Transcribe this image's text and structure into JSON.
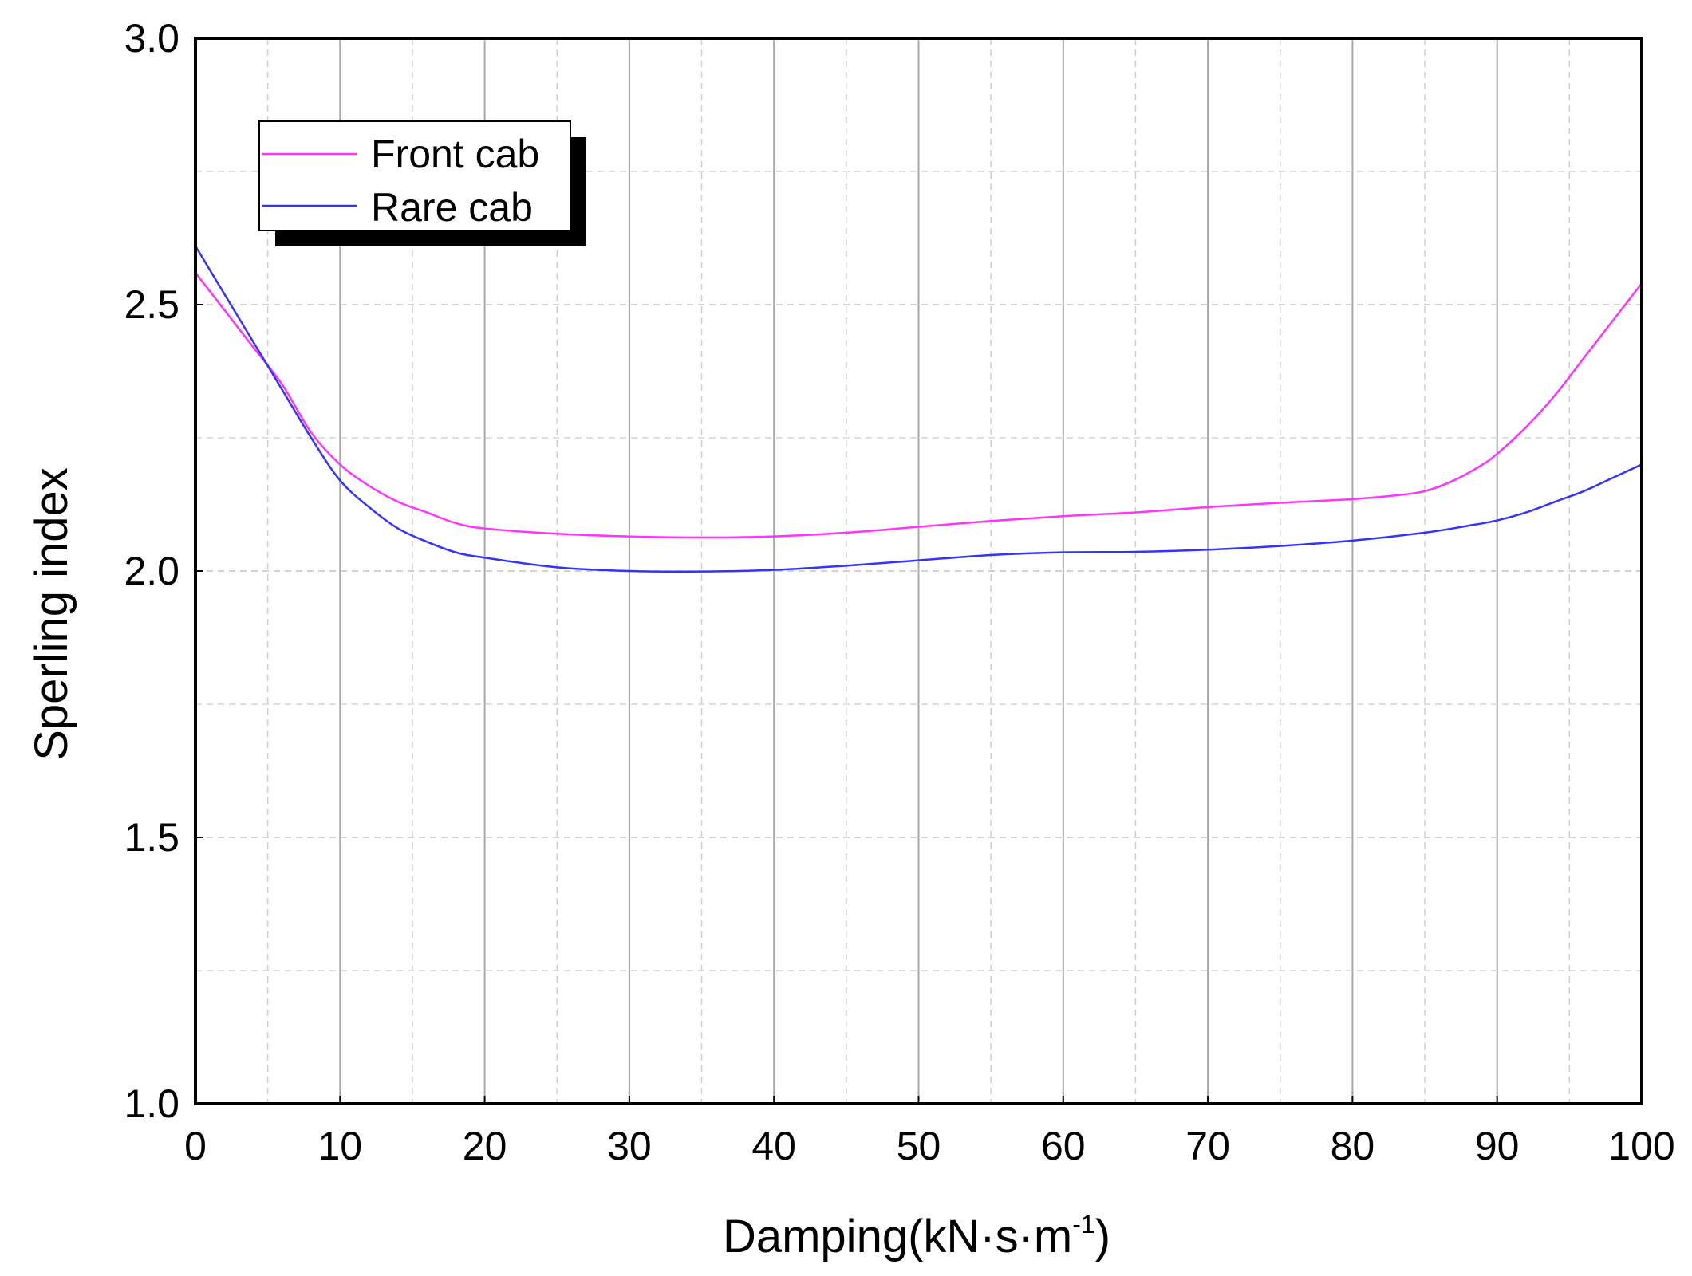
{
  "chart_data": {
    "type": "line",
    "xlabel": {
      "main": "Damping(kN·s·m",
      "sup": "-1",
      "close": ")"
    },
    "ylabel": "Sperling index",
    "xlim": [
      0,
      100
    ],
    "ylim": [
      1.0,
      3.0
    ],
    "x_ticks": [
      "0",
      "10",
      "20",
      "30",
      "40",
      "50",
      "60",
      "70",
      "80",
      "90",
      "100"
    ],
    "x_tick_values": [
      0,
      10,
      20,
      30,
      40,
      50,
      60,
      70,
      80,
      90,
      100
    ],
    "y_ticks": [
      "1.0",
      "1.5",
      "2.0",
      "2.5",
      "3.0"
    ],
    "y_tick_values": [
      1.0,
      1.5,
      2.0,
      2.5,
      3.0
    ],
    "grid": {
      "major": true,
      "minor_dashed": true
    },
    "legend_position": "top-left",
    "series": [
      {
        "name": "Front cab",
        "color": "#ff33ff",
        "x": [
          0,
          2,
          4,
          6,
          8,
          10,
          12,
          14,
          16,
          18,
          20,
          25,
          30,
          35,
          40,
          45,
          50,
          55,
          60,
          65,
          70,
          75,
          80,
          83,
          85,
          87,
          89,
          90,
          92,
          94,
          96,
          98,
          100
        ],
        "y": [
          2.56,
          2.49,
          2.42,
          2.35,
          2.26,
          2.2,
          2.16,
          2.13,
          2.11,
          2.09,
          2.08,
          2.07,
          2.065,
          2.063,
          2.065,
          2.072,
          2.083,
          2.094,
          2.103,
          2.11,
          2.12,
          2.128,
          2.135,
          2.142,
          2.15,
          2.17,
          2.2,
          2.22,
          2.27,
          2.33,
          2.4,
          2.47,
          2.54
        ]
      },
      {
        "name": "Rare cab",
        "color": "#3333ff",
        "x": [
          0,
          2,
          4,
          6,
          8,
          10,
          12,
          14,
          16,
          18,
          20,
          25,
          30,
          35,
          40,
          45,
          50,
          55,
          60,
          65,
          70,
          75,
          80,
          85,
          88,
          90,
          92,
          94,
          96,
          98,
          100
        ],
        "y": [
          2.61,
          2.52,
          2.43,
          2.34,
          2.25,
          2.17,
          2.12,
          2.08,
          2.055,
          2.035,
          2.025,
          2.007,
          2.0,
          1.999,
          2.002,
          2.01,
          2.02,
          2.03,
          2.035,
          2.036,
          2.04,
          2.047,
          2.057,
          2.072,
          2.085,
          2.095,
          2.11,
          2.13,
          2.15,
          2.175,
          2.2
        ]
      }
    ]
  }
}
